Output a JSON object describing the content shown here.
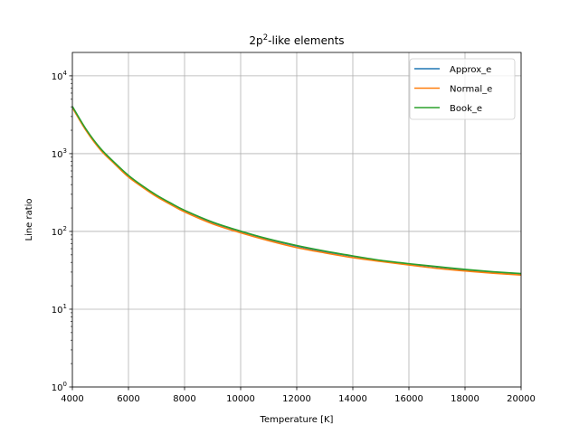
{
  "chart_data": {
    "type": "line",
    "title": {
      "base": "2p",
      "sup": "2",
      "rest": "-like elements"
    },
    "xlabel": "Temperature [K]",
    "ylabel": "Line ratio",
    "xlim": [
      4000,
      20000
    ],
    "ylim": [
      1,
      20000
    ],
    "yscale": "log",
    "grid": true,
    "legend_position": "top-right",
    "xticks": [
      4000,
      6000,
      8000,
      10000,
      12000,
      14000,
      16000,
      18000,
      20000
    ],
    "xtick_labels": [
      "4000",
      "6000",
      "8000",
      "10000",
      "12000",
      "14000",
      "16000",
      "18000",
      "20000"
    ],
    "yticks": [
      {
        "value": 1,
        "base": "10",
        "exp": "0"
      },
      {
        "value": 10,
        "base": "10",
        "exp": "1"
      },
      {
        "value": 100,
        "base": "10",
        "exp": "2"
      },
      {
        "value": 1000,
        "base": "10",
        "exp": "3"
      },
      {
        "value": 10000,
        "base": "10",
        "exp": "4"
      }
    ],
    "x": [
      4000,
      4500,
      5000,
      5500,
      6000,
      6500,
      7000,
      7500,
      8000,
      9000,
      10000,
      11000,
      12000,
      13000,
      14000,
      15000,
      16000,
      17000,
      18000,
      19000,
      20000
    ],
    "series": [
      {
        "name": "Approx_e",
        "color": "#1f77b4",
        "values": [
          4000,
          2000,
          1150,
          760,
          520,
          380,
          290,
          230,
          185,
          130,
          100,
          79,
          65,
          55,
          48,
          42,
          38,
          35,
          32,
          30,
          28.5
        ]
      },
      {
        "name": "Normal_e",
        "color": "#ff7f0e",
        "values": [
          3900,
          1950,
          1120,
          740,
          500,
          370,
          280,
          222,
          178,
          125,
          96,
          76,
          62,
          53,
          46,
          41,
          37,
          33.5,
          31,
          29,
          27.5
        ]
      },
      {
        "name": "Book_e",
        "color": "#2ca02c",
        "values": [
          4050,
          2030,
          1170,
          770,
          525,
          385,
          293,
          232,
          187,
          132,
          101,
          80,
          66,
          56,
          48.5,
          42.5,
          38.5,
          35.3,
          32.5,
          30.3,
          28.7
        ]
      }
    ]
  }
}
